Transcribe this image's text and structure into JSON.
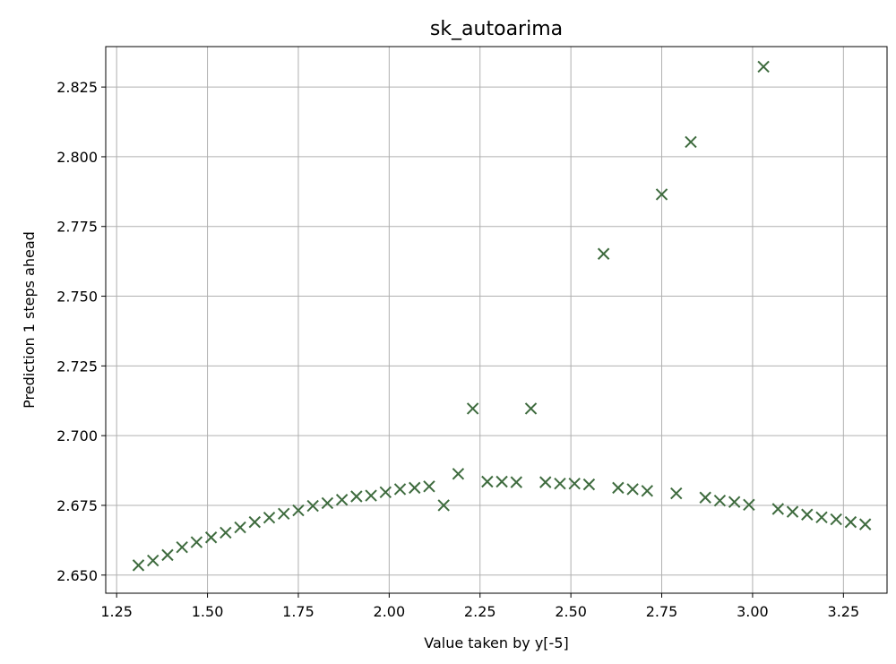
{
  "chart_data": {
    "type": "scatter",
    "title": "sk_autoarima",
    "xlabel": "Value taken by y[-5]",
    "ylabel": "Prediction 1 steps ahead",
    "xlim": [
      1.22,
      3.37
    ],
    "ylim": [
      2.6435,
      2.8395
    ],
    "x_ticks": [
      1.25,
      1.5,
      1.75,
      2.0,
      2.25,
      2.5,
      2.75,
      3.0,
      3.25
    ],
    "x_tick_labels": [
      "1.25",
      "1.50",
      "1.75",
      "2.00",
      "2.25",
      "2.50",
      "2.75",
      "3.00",
      "3.25"
    ],
    "y_ticks": [
      2.65,
      2.675,
      2.7,
      2.725,
      2.75,
      2.775,
      2.8,
      2.825
    ],
    "y_tick_labels": [
      "2.650",
      "2.675",
      "2.700",
      "2.725",
      "2.750",
      "2.775",
      "2.800",
      "2.825"
    ],
    "grid": true,
    "marker": "x",
    "color": "#3e6b3e",
    "points": [
      [
        1.31,
        2.6535
      ],
      [
        1.35,
        2.6552
      ],
      [
        1.39,
        2.6572
      ],
      [
        1.43,
        2.66
      ],
      [
        1.47,
        2.6618
      ],
      [
        1.51,
        2.6635
      ],
      [
        1.55,
        2.6652
      ],
      [
        1.59,
        2.6671
      ],
      [
        1.63,
        2.669
      ],
      [
        1.67,
        2.6706
      ],
      [
        1.71,
        2.672
      ],
      [
        1.75,
        2.6732
      ],
      [
        1.79,
        2.6748
      ],
      [
        1.83,
        2.6758
      ],
      [
        1.87,
        2.677
      ],
      [
        1.91,
        2.6782
      ],
      [
        1.95,
        2.6785
      ],
      [
        1.99,
        2.6797
      ],
      [
        2.03,
        2.6808
      ],
      [
        2.07,
        2.6813
      ],
      [
        2.11,
        2.6818
      ],
      [
        2.15,
        2.675
      ],
      [
        2.19,
        2.6863
      ],
      [
        2.23,
        2.7097
      ],
      [
        2.27,
        2.6835
      ],
      [
        2.31,
        2.6835
      ],
      [
        2.35,
        2.6833
      ],
      [
        2.39,
        2.7097
      ],
      [
        2.43,
        2.6833
      ],
      [
        2.47,
        2.6828
      ],
      [
        2.51,
        2.6828
      ],
      [
        2.55,
        2.6825
      ],
      [
        2.59,
        2.7652
      ],
      [
        2.63,
        2.6813
      ],
      [
        2.67,
        2.6808
      ],
      [
        2.71,
        2.6802
      ],
      [
        2.75,
        2.7865
      ],
      [
        2.79,
        2.6793
      ],
      [
        2.83,
        2.8053
      ],
      [
        2.87,
        2.6778
      ],
      [
        2.91,
        2.6767
      ],
      [
        2.95,
        2.6762
      ],
      [
        2.99,
        2.6752
      ],
      [
        3.03,
        2.8323
      ],
      [
        3.07,
        2.6737
      ],
      [
        3.11,
        2.6727
      ],
      [
        3.15,
        2.6717
      ],
      [
        3.19,
        2.6707
      ],
      [
        3.23,
        2.67
      ],
      [
        3.27,
        2.669
      ],
      [
        3.31,
        2.6682
      ]
    ]
  }
}
